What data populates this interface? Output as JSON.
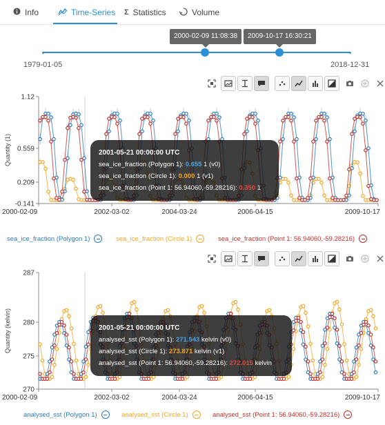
{
  "tabs": [
    {
      "label": "Info",
      "icon": "info-icon",
      "active": false
    },
    {
      "label": "Time-Series",
      "icon": "timeseries-icon",
      "active": true
    },
    {
      "label": "Statistics",
      "icon": "sigma-icon",
      "active": false
    },
    {
      "label": "Volume",
      "icon": "volume-icon",
      "active": false
    }
  ],
  "time_slider": {
    "start_label": "2000-02-09 11:08:38",
    "end_label": "2009-10-17 16:30:21",
    "range_min": "1979-01-05",
    "range_max": "2018-12-31",
    "start_fraction": 0.53,
    "end_fraction": 0.775
  },
  "colors": {
    "accent": "#2b8fd6",
    "polygon": "#2a7ab8",
    "circle": "#f5a623",
    "point": "#c0302b"
  },
  "chart_data": [
    {
      "type": "line",
      "ylabel": "Quantity (1)",
      "yticks": [
        "1.12",
        "0.559",
        "0.209",
        "-0.141"
      ],
      "ylim": [
        -0.141,
        1.12
      ],
      "xticks": [
        "2000-02-09",
        "2002-03-02",
        "2004-03-24",
        "2006-04-15",
        "2009-10-17"
      ],
      "grid": false,
      "series": [
        {
          "name": "sea_ice_fraction (Polygon 1)",
          "color": "#2a7ab8"
        },
        {
          "name": "sea_ice_fraction (Circle 1)",
          "color": "#f5a623"
        },
        {
          "name": "sea_ice_fraction (Point 1: 56.94060,-59.28216)",
          "color": "#c0302b"
        }
      ],
      "tooltip": {
        "title": "2001-05-21 00:00:00 UTC",
        "rows": [
          {
            "label": "sea_ice_fraction (Polygon 1):",
            "value": "0.655",
            "unit": "1 (v0)",
            "color": "#4ba3e3"
          },
          {
            "label": "sea_ice_fraction (Circle 1):",
            "value": "0.000",
            "unit": "1 (v1)",
            "color": "#f5a623"
          },
          {
            "label": "sea_ice_fraction (Point 1: 56.94060,-59.28216):",
            "value": "0.350",
            "unit": "1",
            "color": "#e04a44"
          }
        ]
      }
    },
    {
      "type": "line",
      "ylabel": "Quantity (kelvin)",
      "yticks": [
        "287",
        "280",
        "275",
        "270"
      ],
      "ylim": [
        270,
        287
      ],
      "xticks": [
        "2000-02-09",
        "2002-03-02",
        "2004-03-24",
        "2006-04-15",
        "2009-10-17"
      ],
      "grid": false,
      "series": [
        {
          "name": "analysed_sst (Polygon 1)",
          "color": "#2a7ab8"
        },
        {
          "name": "analysed_sst (Circle 1)",
          "color": "#f5a623"
        },
        {
          "name": "analysed_sst (Point 1: 56.94060,-59.28216)",
          "color": "#c0302b"
        }
      ],
      "tooltip": {
        "title": "2001-05-21 00:00:00 UTC",
        "rows": [
          {
            "label": "analysed_sst (Polygon 1):",
            "value": "271.543",
            "unit": "kelvin (v0)",
            "color": "#4ba3e3"
          },
          {
            "label": "analysed_sst (Circle 1):",
            "value": "273.871",
            "unit": "kelvin (v1)",
            "color": "#f5a623"
          },
          {
            "label": "analysed_sst (Point 1: 56.94060,-59.28216):",
            "value": "272.015",
            "unit": "kelvin",
            "color": "#e04a44"
          }
        ]
      }
    }
  ],
  "toolbar_icons": [
    "fit-icon",
    "image-icon",
    "text-height-icon",
    "comment-icon",
    "scatter-icon",
    "line-icon",
    "bar-icon",
    "contrast-icon",
    "camera-icon",
    "add-icon",
    "close-icon"
  ]
}
